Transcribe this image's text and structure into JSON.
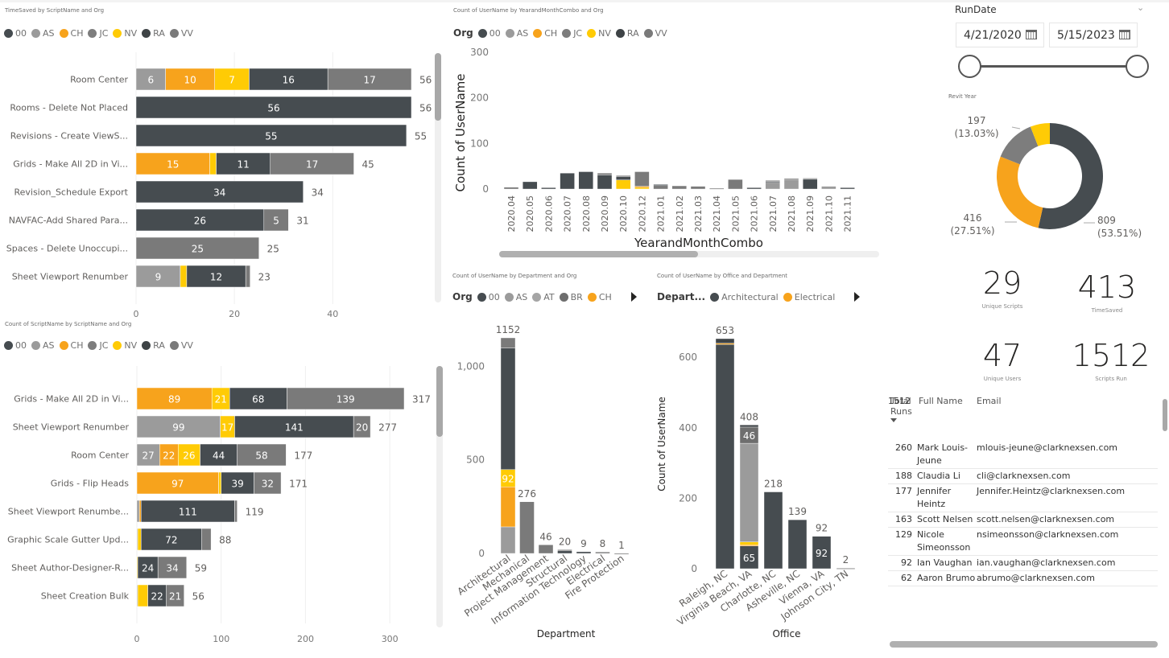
{
  "colors": {
    "00": "#464C50",
    "AS": "#9B9B9B",
    "CH": "#F7A31C",
    "JC": "#7D7D7D",
    "NV": "#FFCB05",
    "RA": "#3E4346",
    "VV": "#7A7A7A",
    "AT": "#A5A5A5",
    "BR": "#6E6E6E",
    "Architectural": "#464C50",
    "Electrical": "#F7A31C"
  },
  "chart_data": [
    {
      "id": "timesaved",
      "type": "bar",
      "orientation": "horizontal",
      "stacked": true,
      "title": "TimeSaved by ScriptName and Org",
      "legend": [
        "00",
        "AS",
        "CH",
        "JC",
        "NV",
        "RA",
        "VV"
      ],
      "legend_position": "top-left",
      "xlim": [
        0,
        56
      ],
      "xticks": [
        "0",
        "20",
        "40"
      ],
      "categories": [
        "Room Center",
        "Rooms - Delete Not Placed",
        "Revisions - Create ViewS...",
        "Grids - Make All 2D in Vi...",
        "Revision_Schedule Export",
        "NAVFAC-Add Shared Para...",
        "Spaces - Delete Unoccupi...",
        "Sheet Viewport Renumber"
      ],
      "totals": [
        56,
        56,
        55,
        45,
        34,
        31,
        25,
        23
      ],
      "segments": [
        [
          {
            "org": "AS",
            "value": 6,
            "label": "6"
          },
          {
            "org": "CH",
            "value": 10,
            "label": "10"
          },
          {
            "org": "NV",
            "value": 7,
            "label": "7"
          },
          {
            "org": "00",
            "value": 16,
            "label": "16"
          },
          {
            "org": "VV",
            "value": 17,
            "label": "17"
          }
        ],
        [
          {
            "org": "00",
            "value": 56,
            "label": "56"
          }
        ],
        [
          {
            "org": "00",
            "value": 55,
            "label": "55"
          }
        ],
        [
          {
            "org": "CH",
            "value": 15,
            "label": "15"
          },
          {
            "org": "NV",
            "value": 1.3,
            "label": ""
          },
          {
            "org": "00",
            "value": 11,
            "label": "11"
          },
          {
            "org": "VV",
            "value": 17,
            "label": "17"
          }
        ],
        [
          {
            "org": "00",
            "value": 34,
            "label": "34"
          }
        ],
        [
          {
            "org": "00",
            "value": 26,
            "label": "26"
          },
          {
            "org": "VV",
            "value": 5,
            "label": "5"
          }
        ],
        [
          {
            "org": "VV",
            "value": 25,
            "label": "25"
          }
        ],
        [
          {
            "org": "AS",
            "value": 9,
            "label": "9"
          },
          {
            "org": "NV",
            "value": 1.3,
            "label": ""
          },
          {
            "org": "00",
            "value": 12,
            "label": "12"
          },
          {
            "org": "VV",
            "value": 0.9,
            "label": ""
          }
        ]
      ]
    },
    {
      "id": "scriptcount",
      "type": "bar",
      "orientation": "horizontal",
      "stacked": true,
      "title": "Count of ScriptName by ScriptName and Org",
      "legend": [
        "00",
        "AS",
        "CH",
        "JC",
        "NV",
        "RA",
        "VV"
      ],
      "legend_position": "top-left",
      "xlim": [
        0,
        317
      ],
      "xticks": [
        "0",
        "100",
        "200",
        "300"
      ],
      "categories": [
        "Grids - Make All 2D in Vi...",
        "Sheet Viewport Renumber",
        "Room Center",
        "Grids - Flip Heads",
        "Sheet Viewport Renumbe...",
        "Graphic Scale Gutter Upd...",
        "Sheet Author-Designer-R...",
        "Sheet Creation Bulk"
      ],
      "totals": [
        317,
        277,
        177,
        171,
        119,
        88,
        59,
        56
      ],
      "segments": [
        [
          {
            "org": "CH",
            "value": 89,
            "label": "89"
          },
          {
            "org": "NV",
            "value": 21,
            "label": "21"
          },
          {
            "org": "00",
            "value": 68,
            "label": "68"
          },
          {
            "org": "VV",
            "value": 139,
            "label": "139"
          }
        ],
        [
          {
            "org": "AS",
            "value": 99,
            "label": "99"
          },
          {
            "org": "NV",
            "value": 17,
            "label": "17"
          },
          {
            "org": "00",
            "value": 141,
            "label": "141"
          },
          {
            "org": "VV",
            "value": 20,
            "label": "20"
          }
        ],
        [
          {
            "org": "AS",
            "value": 27,
            "label": "27"
          },
          {
            "org": "CH",
            "value": 22,
            "label": "22"
          },
          {
            "org": "NV",
            "value": 26,
            "label": "26"
          },
          {
            "org": "00",
            "value": 44,
            "label": "44"
          },
          {
            "org": "VV",
            "value": 58,
            "label": "58"
          }
        ],
        [
          {
            "org": "CH",
            "value": 97,
            "label": "97"
          },
          {
            "org": "NV",
            "value": 3,
            "label": ""
          },
          {
            "org": "00",
            "value": 39,
            "label": "39"
          },
          {
            "org": "VV",
            "value": 32,
            "label": "32"
          }
        ],
        [
          {
            "org": "AS",
            "value": 3,
            "label": ""
          },
          {
            "org": "CH",
            "value": 2,
            "label": ""
          },
          {
            "org": "00",
            "value": 111,
            "label": "111"
          },
          {
            "org": "VV",
            "value": 3,
            "label": ""
          }
        ],
        [
          {
            "org": "AS",
            "value": 1,
            "label": ""
          },
          {
            "org": "NV",
            "value": 4,
            "label": ""
          },
          {
            "org": "00",
            "value": 72,
            "label": "72"
          },
          {
            "org": "VV",
            "value": 11,
            "label": ""
          }
        ],
        [
          {
            "org": "NV",
            "value": 1,
            "label": ""
          },
          {
            "org": "00",
            "value": 24,
            "label": "24"
          },
          {
            "org": "VV",
            "value": 34,
            "label": "34"
          }
        ],
        [
          {
            "org": "AS",
            "value": 1,
            "label": ""
          },
          {
            "org": "NV",
            "value": 12,
            "label": ""
          },
          {
            "org": "00",
            "value": 22,
            "label": "22"
          },
          {
            "org": "VV",
            "value": 21,
            "label": "21"
          }
        ]
      ]
    },
    {
      "id": "timeline",
      "type": "bar",
      "orientation": "vertical",
      "stacked": true,
      "title": "Count of UserName by YearandMonthCombo and Org",
      "legend_title": "Org",
      "legend": [
        "00",
        "AS",
        "CH",
        "JC",
        "NV",
        "RA",
        "VV"
      ],
      "legend_position": "top-left",
      "xlabel": "YearandMonthCombo",
      "ylabel": "Count of UserName",
      "ylim": [
        0,
        300
      ],
      "yticks": [
        "0",
        "100",
        "200",
        "300"
      ],
      "categories": [
        "2020.04",
        "2020.05",
        "2020.06",
        "2020.07",
        "2020.08",
        "2020.09",
        "2020.10",
        "2020.12",
        "2021.01",
        "2021.02",
        "2021.03",
        "2021.04",
        "2021.05",
        "2021.06",
        "2021.07",
        "2021.08",
        "2021.09",
        "2021.10",
        "2021.11"
      ],
      "segments": [
        [
          {
            "org": "VV",
            "value": 4
          }
        ],
        [
          {
            "org": "00",
            "value": 16
          }
        ],
        [
          {
            "org": "00",
            "value": 3
          }
        ],
        [
          {
            "org": "00",
            "value": 35
          }
        ],
        [
          {
            "org": "00",
            "value": 38
          }
        ],
        [
          {
            "org": "00",
            "value": 31
          },
          {
            "org": "VV",
            "value": 4
          }
        ],
        [
          {
            "org": "NV",
            "value": 20
          },
          {
            "org": "00",
            "value": 8
          },
          {
            "org": "AS",
            "value": 2
          }
        ],
        [
          {
            "org": "NV",
            "value": 4
          },
          {
            "org": "CH",
            "value": 2
          },
          {
            "org": "VV",
            "value": 32
          }
        ],
        [
          {
            "org": "VV",
            "value": 8
          },
          {
            "org": "00",
            "value": 2
          }
        ],
        [
          {
            "org": "VV",
            "value": 7
          }
        ],
        [
          {
            "org": "VV",
            "value": 6
          }
        ],
        [
          {
            "org": "AS",
            "value": 2
          }
        ],
        [
          {
            "org": "VV",
            "value": 21
          }
        ],
        [
          {
            "org": "00",
            "value": 3
          }
        ],
        [
          {
            "org": "AS",
            "value": 15
          },
          {
            "org": "00",
            "value": 2
          },
          {
            "org": "VV",
            "value": 2
          }
        ],
        [
          {
            "org": "AS",
            "value": 20
          },
          {
            "org": "VV",
            "value": 3
          }
        ],
        [
          {
            "org": "00",
            "value": 22
          },
          {
            "org": "AS",
            "value": 2
          }
        ],
        [
          {
            "org": "AS",
            "value": 6
          }
        ],
        [
          {
            "org": "00",
            "value": 3
          }
        ]
      ]
    },
    {
      "id": "department",
      "type": "bar",
      "orientation": "vertical",
      "stacked": true,
      "title": "Count of UserName by Department and Org",
      "legend_title": "Org",
      "legend": [
        "00",
        "AS",
        "AT",
        "BR",
        "CH"
      ],
      "legend_position": "top-left",
      "xlabel": "Department",
      "ylabel": "",
      "ylim": [
        0,
        1152
      ],
      "yticks": [
        "0",
        "500",
        "1,000"
      ],
      "categories": [
        "Architectural",
        "Mechanical",
        "Project Management",
        "Structural",
        "Information Technology",
        "Electrical",
        "Fire Protection"
      ],
      "totals": [
        1152,
        276,
        46,
        20,
        9,
        8,
        1
      ],
      "segments": [
        [
          {
            "org": "AS",
            "value": 142,
            "label": ""
          },
          {
            "org": "CH",
            "value": 214,
            "label": ""
          },
          {
            "org": "NV",
            "value": 92,
            "label": "92"
          },
          {
            "org": "00",
            "value": 650,
            "label": ""
          },
          {
            "org": "VV",
            "value": 54,
            "label": ""
          }
        ],
        [
          {
            "org": "VV",
            "value": 276,
            "label": ""
          }
        ],
        [
          {
            "org": "VV",
            "value": 46,
            "label": ""
          }
        ],
        [
          {
            "org": "00",
            "value": 15,
            "label": ""
          },
          {
            "org": "VV",
            "value": 5,
            "label": ""
          }
        ],
        [
          {
            "org": "00",
            "value": 9,
            "label": ""
          }
        ],
        [
          {
            "org": "VV",
            "value": 8,
            "label": ""
          }
        ],
        [
          {
            "org": "AS",
            "value": 1,
            "label": ""
          }
        ]
      ]
    },
    {
      "id": "office",
      "type": "bar",
      "orientation": "vertical",
      "stacked": true,
      "title": "Count of UserName by Office and Department",
      "legend_title": "Depart...",
      "legend": [
        "Architectural",
        "Electrical"
      ],
      "legend_position": "top-left",
      "xlabel": "Office",
      "ylabel": "Count of UserName",
      "ylim": [
        0,
        653
      ],
      "yticks": [
        "0",
        "200",
        "400",
        "600"
      ],
      "categories": [
        "Raleigh, NC",
        "Virginia Beach, VA",
        "Charlotte, NC",
        "Asheville, NC",
        "Vienna, VA",
        "Johnson City, TN"
      ],
      "totals": [
        653,
        408,
        218,
        139,
        92,
        2
      ],
      "segments": [
        [
          {
            "dept": "00",
            "value": 637,
            "label": ""
          },
          {
            "dept": "CH",
            "value": 3,
            "label": ""
          },
          {
            "dept": "RA",
            "value": 13,
            "label": ""
          }
        ],
        [
          {
            "dept": "00",
            "value": 65,
            "label": "65"
          },
          {
            "dept": "CH",
            "value": 3,
            "label": ""
          },
          {
            "dept": "NV",
            "value": 8,
            "label": ""
          },
          {
            "dept": "AS",
            "value": 280,
            "label": ""
          },
          {
            "dept": "BR",
            "value": 46,
            "label": "46"
          },
          {
            "dept": "RA",
            "value": 6,
            "label": ""
          }
        ],
        [
          {
            "dept": "00",
            "value": 218,
            "label": ""
          }
        ],
        [
          {
            "dept": "00",
            "value": 139,
            "label": ""
          }
        ],
        [
          {
            "dept": "00",
            "value": 92,
            "label": "92"
          }
        ],
        [
          {
            "dept": "AS",
            "value": 2,
            "label": ""
          }
        ]
      ]
    },
    {
      "id": "revit-year",
      "type": "pie",
      "donut": true,
      "title": "Revit Year",
      "slices": [
        {
          "value": 809,
          "label": "809",
          "pct": "(53.51%)",
          "color": "#464C50"
        },
        {
          "value": 416,
          "label": "416",
          "pct": "(27.51%)",
          "color": "#F7A31C"
        },
        {
          "value": 197,
          "label": "197",
          "pct": "(13.03%)",
          "color": "#7D7D7D"
        },
        {
          "value": 90,
          "label": "",
          "pct": "",
          "color": "#FFCB05"
        }
      ]
    }
  ],
  "slicer": {
    "title": "RunDate",
    "start": "4/21/2020",
    "end": "5/15/2023"
  },
  "cards": [
    {
      "value": "29",
      "label": "Unique Scripts"
    },
    {
      "value": "413",
      "label": "TimeSaved"
    },
    {
      "value": "47",
      "label": "Unique Users"
    },
    {
      "value": "1512",
      "label": "Scripts Run"
    }
  ],
  "table": {
    "headers": [
      "Total Runs",
      "Full Name",
      "Email"
    ],
    "rows": [
      {
        "runs": "260",
        "name": "Mark Louis-Jeune",
        "email": "mlouis-jeune@clarknexsen.com"
      },
      {
        "runs": "188",
        "name": "Claudia Li",
        "email": "cli@clarknexsen.com"
      },
      {
        "runs": "177",
        "name": "Jennifer Heintz",
        "email": "Jennifer.Heintz@clarknexsen.com"
      },
      {
        "runs": "163",
        "name": "Scott Nelsen",
        "email": "scott.nelsen@clarknexsen.com"
      },
      {
        "runs": "129",
        "name": "Nicole Simeonsson",
        "email": "nsimeonsson@clarknexsen.com"
      },
      {
        "runs": "92",
        "name": "Ian Vaughan",
        "email": "ian.vaughan@clarknexsen.com"
      },
      {
        "runs": "62",
        "name": "Aaron Brumo",
        "email": "abrumo@clarknexsen.com"
      }
    ],
    "total": "1512"
  }
}
